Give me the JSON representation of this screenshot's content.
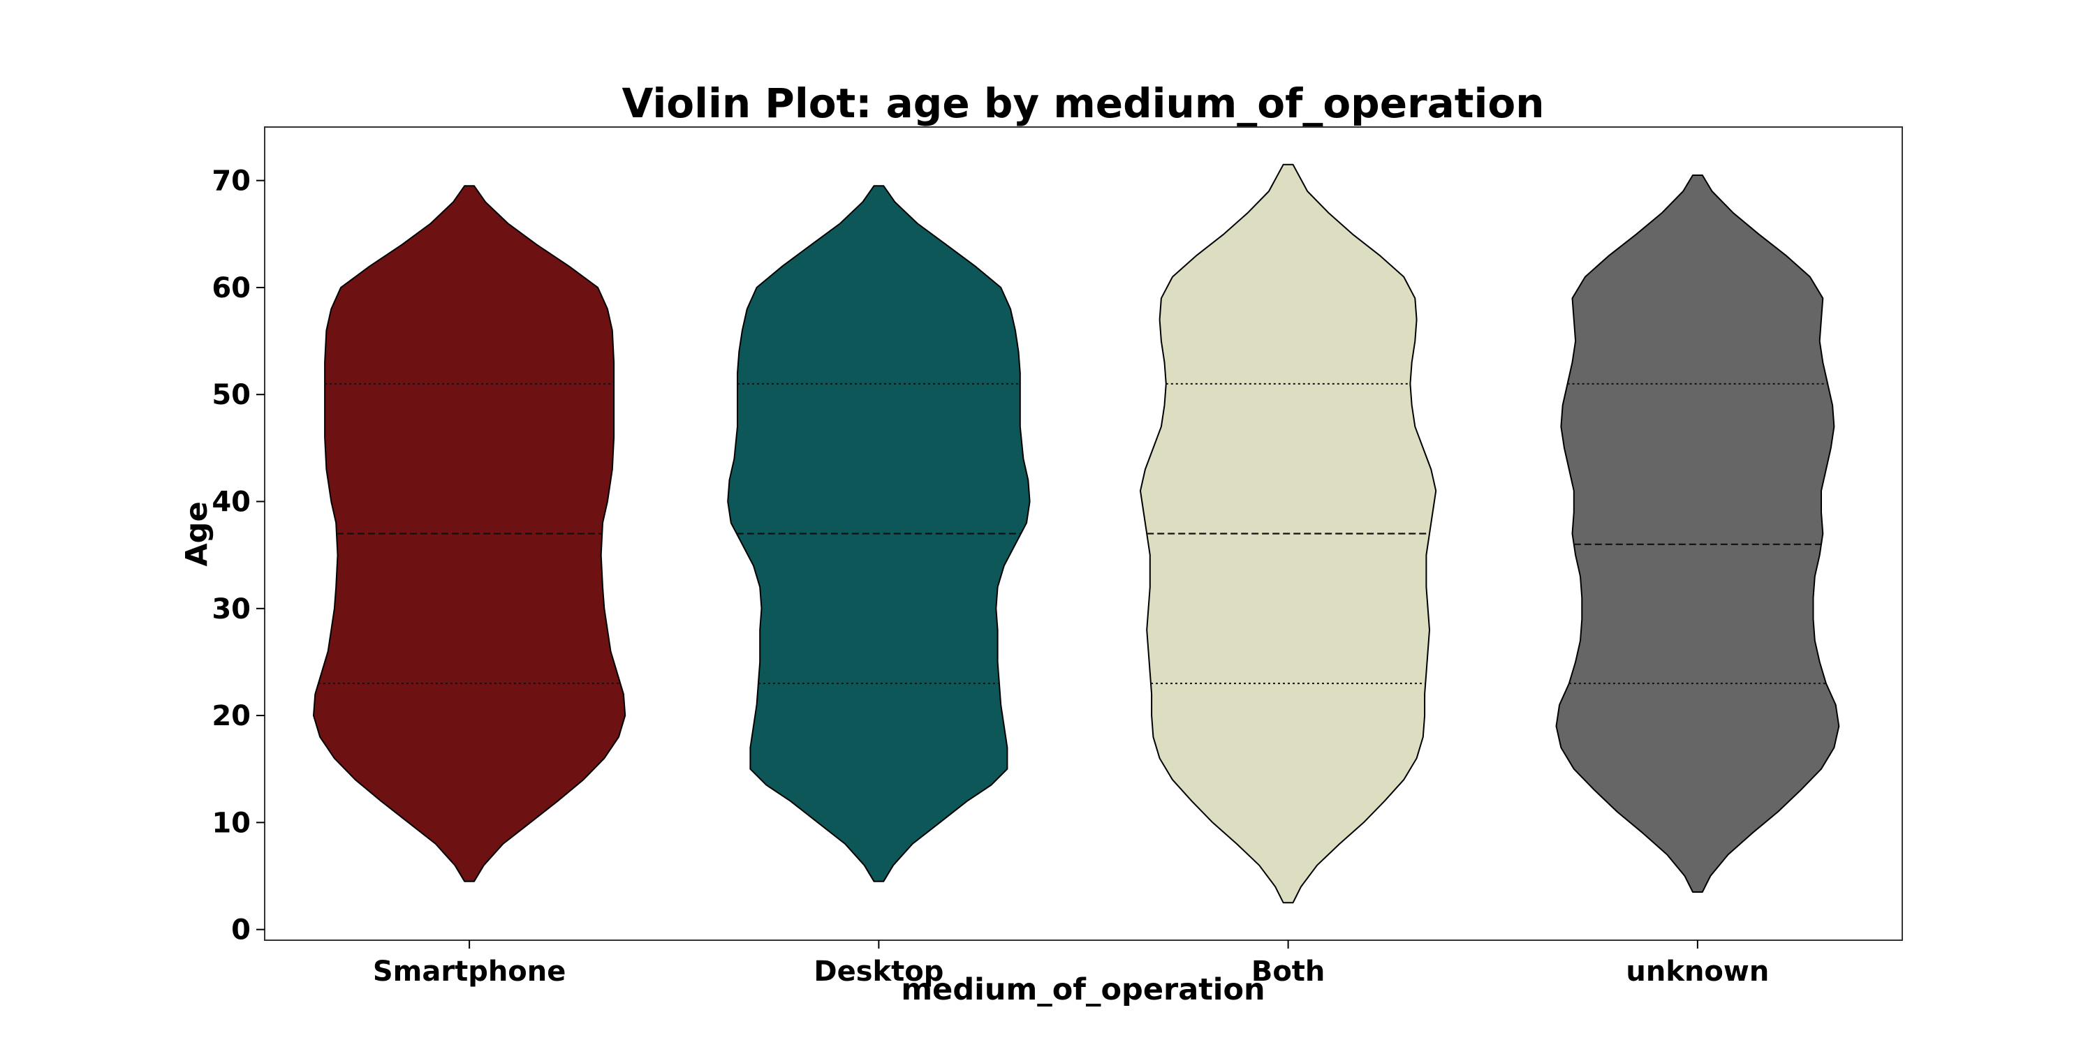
{
  "chart_data": {
    "type": "violin",
    "title": "Violin Plot: age by medium_of_operation",
    "xlabel": "medium_of_operation",
    "ylabel": "Age",
    "categories": [
      "Smartphone",
      "Desktop",
      "Both",
      "unknown"
    ],
    "colors": [
      "#6e1113",
      "#0e5758",
      "#ddddc2",
      "#666666"
    ],
    "ylim": [
      -1,
      75
    ],
    "yticks": [
      0,
      10,
      20,
      30,
      40,
      50,
      60,
      70
    ],
    "grid": false,
    "series": [
      {
        "name": "Smartphone",
        "min": 4.5,
        "max": 69.5,
        "quartiles": [
          23,
          37,
          51
        ],
        "profile": [
          [
            4.5,
            0.03
          ],
          [
            6,
            0.09
          ],
          [
            8,
            0.21
          ],
          [
            10,
            0.38
          ],
          [
            12,
            0.55
          ],
          [
            14,
            0.71
          ],
          [
            16,
            0.84
          ],
          [
            18,
            0.93
          ],
          [
            20,
            0.97
          ],
          [
            22,
            0.96
          ],
          [
            24,
            0.92
          ],
          [
            26,
            0.88
          ],
          [
            28,
            0.86
          ],
          [
            30,
            0.84
          ],
          [
            32,
            0.83
          ],
          [
            35,
            0.82
          ],
          [
            38,
            0.83
          ],
          [
            40,
            0.86
          ],
          [
            43,
            0.89
          ],
          [
            46,
            0.9
          ],
          [
            50,
            0.9
          ],
          [
            53,
            0.9
          ],
          [
            56,
            0.89
          ],
          [
            58,
            0.86
          ],
          [
            60,
            0.8
          ],
          [
            62,
            0.62
          ],
          [
            64,
            0.42
          ],
          [
            66,
            0.24
          ],
          [
            68,
            0.1
          ],
          [
            69.5,
            0.03
          ]
        ]
      },
      {
        "name": "Desktop",
        "min": 4.5,
        "max": 69.5,
        "quartiles": [
          23,
          37,
          51
        ],
        "profile": [
          [
            4.5,
            0.03
          ],
          [
            6,
            0.09
          ],
          [
            8,
            0.21
          ],
          [
            10,
            0.38
          ],
          [
            12,
            0.55
          ],
          [
            13.5,
            0.7
          ],
          [
            15,
            0.8
          ],
          [
            17,
            0.8
          ],
          [
            19,
            0.78
          ],
          [
            21,
            0.76
          ],
          [
            23,
            0.75
          ],
          [
            25,
            0.74
          ],
          [
            28,
            0.74
          ],
          [
            30,
            0.73
          ],
          [
            32,
            0.74
          ],
          [
            34,
            0.78
          ],
          [
            36,
            0.85
          ],
          [
            38,
            0.92
          ],
          [
            40,
            0.94
          ],
          [
            42,
            0.93
          ],
          [
            44,
            0.9
          ],
          [
            47,
            0.88
          ],
          [
            50,
            0.88
          ],
          [
            52,
            0.88
          ],
          [
            54,
            0.87
          ],
          [
            56,
            0.85
          ],
          [
            58,
            0.82
          ],
          [
            60,
            0.76
          ],
          [
            62,
            0.6
          ],
          [
            64,
            0.42
          ],
          [
            66,
            0.24
          ],
          [
            68,
            0.1
          ],
          [
            69.5,
            0.03
          ]
        ]
      },
      {
        "name": "Both",
        "min": 2.5,
        "max": 71.5,
        "quartiles": [
          23,
          37,
          51
        ],
        "profile": [
          [
            2.5,
            0.03
          ],
          [
            4,
            0.08
          ],
          [
            6,
            0.18
          ],
          [
            8,
            0.32
          ],
          [
            10,
            0.47
          ],
          [
            12,
            0.6
          ],
          [
            14,
            0.72
          ],
          [
            16,
            0.8
          ],
          [
            18,
            0.84
          ],
          [
            20,
            0.85
          ],
          [
            22,
            0.85
          ],
          [
            24,
            0.86
          ],
          [
            26,
            0.87
          ],
          [
            28,
            0.88
          ],
          [
            30,
            0.87
          ],
          [
            32,
            0.86
          ],
          [
            35,
            0.86
          ],
          [
            37,
            0.88
          ],
          [
            39,
            0.9
          ],
          [
            41,
            0.92
          ],
          [
            43,
            0.89
          ],
          [
            45,
            0.84
          ],
          [
            47,
            0.79
          ],
          [
            49,
            0.77
          ],
          [
            51,
            0.76
          ],
          [
            53,
            0.77
          ],
          [
            55,
            0.79
          ],
          [
            57,
            0.8
          ],
          [
            59,
            0.79
          ],
          [
            61,
            0.72
          ],
          [
            63,
            0.57
          ],
          [
            65,
            0.4
          ],
          [
            67,
            0.25
          ],
          [
            69,
            0.12
          ],
          [
            71.5,
            0.03
          ]
        ]
      },
      {
        "name": "unknown",
        "min": 3.5,
        "max": 70.5,
        "quartiles": [
          23,
          36,
          51
        ],
        "profile": [
          [
            3.5,
            0.03
          ],
          [
            5,
            0.08
          ],
          [
            7,
            0.19
          ],
          [
            9,
            0.34
          ],
          [
            11,
            0.5
          ],
          [
            13,
            0.64
          ],
          [
            15,
            0.77
          ],
          [
            17,
            0.85
          ],
          [
            19,
            0.88
          ],
          [
            21,
            0.86
          ],
          [
            23,
            0.8
          ],
          [
            25,
            0.76
          ],
          [
            27,
            0.73
          ],
          [
            29,
            0.72
          ],
          [
            31,
            0.72
          ],
          [
            33,
            0.73
          ],
          [
            35,
            0.76
          ],
          [
            37,
            0.78
          ],
          [
            39,
            0.77
          ],
          [
            41,
            0.77
          ],
          [
            43,
            0.8
          ],
          [
            45,
            0.83
          ],
          [
            47,
            0.85
          ],
          [
            49,
            0.84
          ],
          [
            51,
            0.81
          ],
          [
            53,
            0.78
          ],
          [
            55,
            0.76
          ],
          [
            57,
            0.77
          ],
          [
            59,
            0.78
          ],
          [
            61,
            0.7
          ],
          [
            63,
            0.55
          ],
          [
            65,
            0.38
          ],
          [
            67,
            0.22
          ],
          [
            69,
            0.09
          ],
          [
            70.5,
            0.03
          ]
        ]
      }
    ]
  }
}
